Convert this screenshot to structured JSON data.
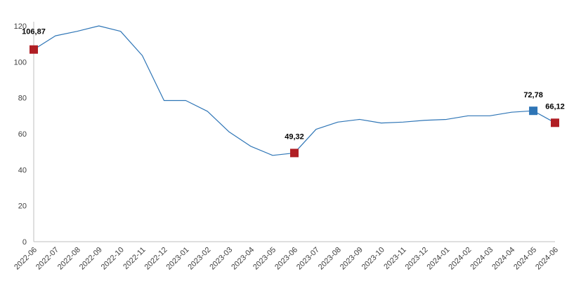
{
  "chart_data": {
    "type": "line",
    "title": "",
    "xlabel": "",
    "ylabel": "",
    "ylim": [
      0,
      120
    ],
    "yticks": [
      0,
      20,
      40,
      60,
      80,
      100,
      120
    ],
    "grid": false,
    "legend": "none",
    "categories": [
      "2022-06",
      "2022-07",
      "2022-08",
      "2022-09",
      "2022-10",
      "2022-11",
      "2022-12",
      "2023-01",
      "2023-02",
      "2023-03",
      "2023-04",
      "2023-05",
      "2023-06",
      "2023-07",
      "2023-08",
      "2023-09",
      "2023-10",
      "2023-11",
      "2023-12",
      "2024-01",
      "2024-02",
      "2024-03",
      "2024-04",
      "2024-05",
      "2024-06"
    ],
    "series": [
      {
        "values": [
          106.87,
          114.5,
          117,
          120,
          117,
          103.5,
          78.5,
          78.5,
          72.5,
          61,
          53,
          48,
          49.32,
          62.5,
          66.5,
          68,
          66,
          66.5,
          67.5,
          68,
          70,
          70,
          72,
          72.78,
          66.12
        ],
        "color": "#2e75b6"
      }
    ],
    "annotations": [
      {
        "index": 0,
        "label": "106,87",
        "marker_color": "#b01e24"
      },
      {
        "index": 12,
        "label": "49,32",
        "marker_color": "#b01e24"
      },
      {
        "index": 23,
        "label": "72,78",
        "marker_color": "#2e75b6"
      },
      {
        "index": 24,
        "label": "66,12",
        "marker_color": "#b01e24"
      }
    ]
  },
  "colors": {
    "line": "#2e75b6",
    "axis": "#bfbfbf",
    "tick_text": "#404040",
    "label_text": "#000000"
  }
}
